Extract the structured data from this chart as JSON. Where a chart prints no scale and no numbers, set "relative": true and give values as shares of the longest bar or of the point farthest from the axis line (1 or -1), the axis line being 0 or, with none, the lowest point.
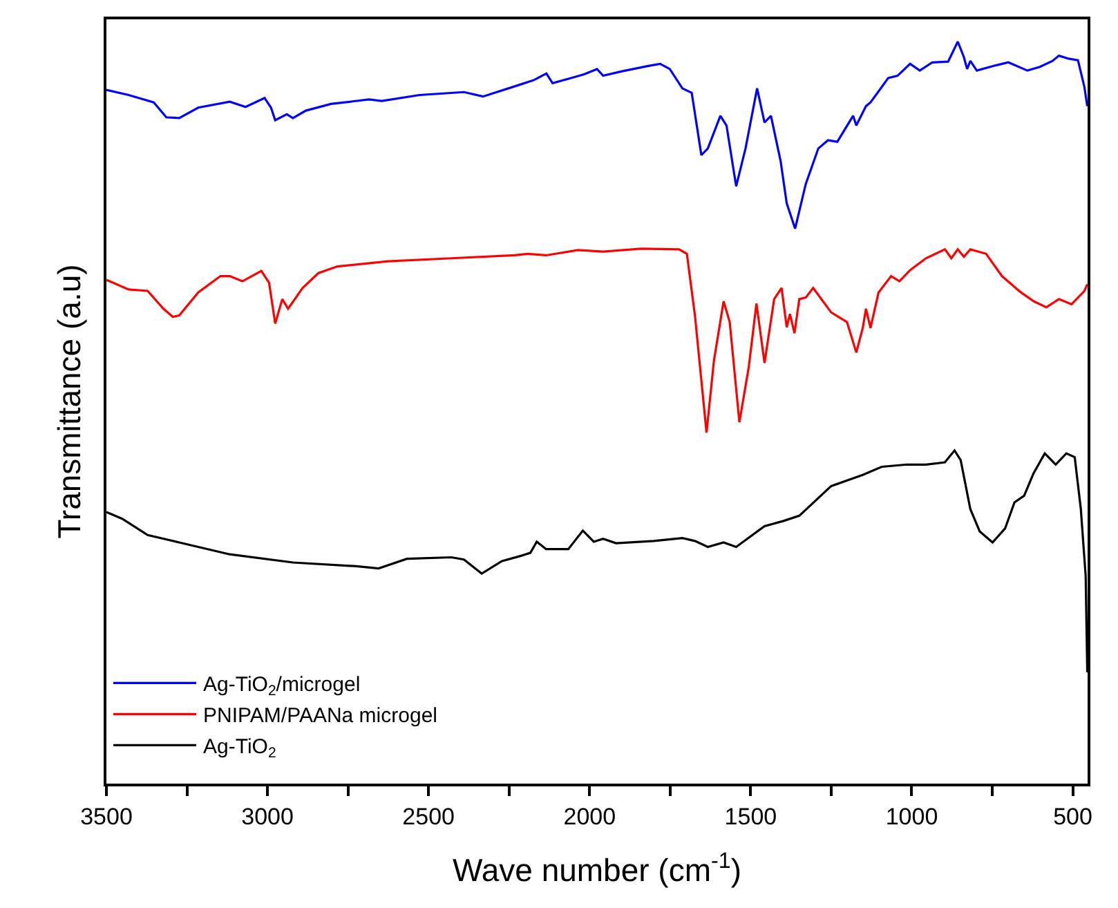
{
  "chart_data": {
    "type": "line",
    "relative": true,
    "xlabel": "Wave number (cm$^{-1}$)",
    "ylabel": "Transmittance (a.u)",
    "xlim": [
      3500,
      454
    ],
    "xticks": [
      3500,
      {
        "value": 3250,
        "label": null
      },
      3000,
      {
        "value": 2750,
        "label": null
      },
      2500,
      {
        "value": 2250,
        "label": null
      },
      2000,
      {
        "value": 1750,
        "label": null
      },
      1500,
      {
        "value": 1250,
        "label": null
      },
      1000,
      {
        "value": 750,
        "label": null
      },
      500
    ],
    "legend": "bottom left",
    "marker": "none",
    "line_style": "solid",
    "series": [
      {
        "name": "Ag-TiO$_{2}$/microgel",
        "color": "#0000ff",
        "x": [
          3500,
          3431,
          3353,
          3314,
          3274,
          3215,
          3117,
          3068,
          3009,
          2989,
          2976,
          2940,
          2921,
          2881,
          2803,
          2685,
          2645,
          2528,
          2390,
          2331,
          2252,
          2174,
          2134,
          2115,
          2056,
          2017,
          1977,
          1958,
          1899,
          1820,
          1781,
          1751,
          1712,
          1683,
          1653,
          1633,
          1594,
          1575,
          1545,
          1516,
          1480,
          1457,
          1437,
          1407,
          1388,
          1362,
          1329,
          1290,
          1260,
          1231,
          1182,
          1172,
          1142,
          1128,
          1073,
          1044,
          1005,
          975,
          936,
          887,
          857,
          838,
          828,
          818,
          798,
          739,
          700,
          641,
          602,
          563,
          543,
          513,
          484,
          464,
          455
        ],
        "values": [
          0.935,
          0.928,
          0.918,
          0.898,
          0.897,
          0.911,
          0.919,
          0.912,
          0.924,
          0.911,
          0.894,
          0.902,
          0.897,
          0.907,
          0.916,
          0.922,
          0.92,
          0.928,
          0.932,
          0.926,
          0.937,
          0.948,
          0.957,
          0.944,
          0.951,
          0.956,
          0.963,
          0.954,
          0.96,
          0.967,
          0.97,
          0.963,
          0.937,
          0.931,
          0.847,
          0.856,
          0.9,
          0.887,
          0.805,
          0.856,
          0.937,
          0.891,
          0.9,
          0.839,
          0.782,
          0.748,
          0.808,
          0.856,
          0.867,
          0.865,
          0.9,
          0.887,
          0.913,
          0.918,
          0.951,
          0.954,
          0.97,
          0.961,
          0.972,
          0.973,
          1.0,
          0.979,
          0.963,
          0.974,
          0.961,
          0.968,
          0.972,
          0.961,
          0.966,
          0.974,
          0.981,
          0.977,
          0.975,
          0.939,
          0.913
        ]
      },
      {
        "name": "PNIPAM/PAANa microgel",
        "color": "#ff0000",
        "x": [
          3500,
          3431,
          3372,
          3323,
          3294,
          3274,
          3215,
          3146,
          3117,
          3078,
          3019,
          2995,
          2976,
          2954,
          2936,
          2891,
          2842,
          2783,
          2626,
          2429,
          2233,
          2193,
          2135,
          2036,
          1958,
          1840,
          1722,
          1698,
          1673,
          1637,
          1614,
          1584,
          1565,
          1535,
          1506,
          1482,
          1457,
          1427,
          1404,
          1388,
          1378,
          1364,
          1349,
          1329,
          1306,
          1250,
          1201,
          1172,
          1152,
          1142,
          1128,
          1103,
          1064,
          1038,
          1005,
          956,
          926,
          897,
          877,
          857,
          838,
          818,
          769,
          720,
          661,
          621,
          582,
          543,
          504,
          464,
          455
        ],
        "values": [
          0.679,
          0.666,
          0.664,
          0.64,
          0.629,
          0.631,
          0.662,
          0.684,
          0.684,
          0.677,
          0.691,
          0.675,
          0.62,
          0.653,
          0.64,
          0.668,
          0.688,
          0.697,
          0.704,
          0.708,
          0.712,
          0.714,
          0.712,
          0.719,
          0.717,
          0.721,
          0.72,
          0.714,
          0.631,
          0.473,
          0.57,
          0.65,
          0.622,
          0.487,
          0.561,
          0.647,
          0.567,
          0.653,
          0.668,
          0.615,
          0.633,
          0.607,
          0.653,
          0.655,
          0.668,
          0.635,
          0.622,
          0.581,
          0.614,
          0.64,
          0.614,
          0.662,
          0.684,
          0.677,
          0.692,
          0.708,
          0.714,
          0.72,
          0.708,
          0.72,
          0.71,
          0.72,
          0.714,
          0.684,
          0.662,
          0.65,
          0.642,
          0.653,
          0.646,
          0.664,
          0.673
        ]
      },
      {
        "name": "Ag-TiO$_{2}$",
        "color": "#000000",
        "x": [
          3500,
          3451,
          3372,
          3274,
          3117,
          2921,
          2724,
          2655,
          2567,
          2429,
          2390,
          2335,
          2272,
          2213,
          2184,
          2164,
          2135,
          2066,
          2021,
          1987,
          1958,
          1918,
          1801,
          1712,
          1673,
          1633,
          1584,
          1545,
          1457,
          1398,
          1349,
          1250,
          1152,
          1093,
          1015,
          956,
          897,
          867,
          848,
          818,
          789,
          749,
          710,
          681,
          651,
          622,
          587,
          553,
          520,
          494,
          475,
          460,
          455
        ],
        "values": [
          0.366,
          0.357,
          0.335,
          0.325,
          0.309,
          0.298,
          0.293,
          0.29,
          0.303,
          0.305,
          0.302,
          0.283,
          0.3,
          0.307,
          0.311,
          0.326,
          0.316,
          0.316,
          0.341,
          0.326,
          0.33,
          0.324,
          0.327,
          0.331,
          0.327,
          0.319,
          0.325,
          0.319,
          0.347,
          0.354,
          0.361,
          0.401,
          0.416,
          0.427,
          0.43,
          0.43,
          0.433,
          0.449,
          0.436,
          0.37,
          0.34,
          0.325,
          0.344,
          0.379,
          0.388,
          0.418,
          0.445,
          0.43,
          0.445,
          0.44,
          0.37,
          0.28,
          0.15
        ]
      }
    ]
  }
}
